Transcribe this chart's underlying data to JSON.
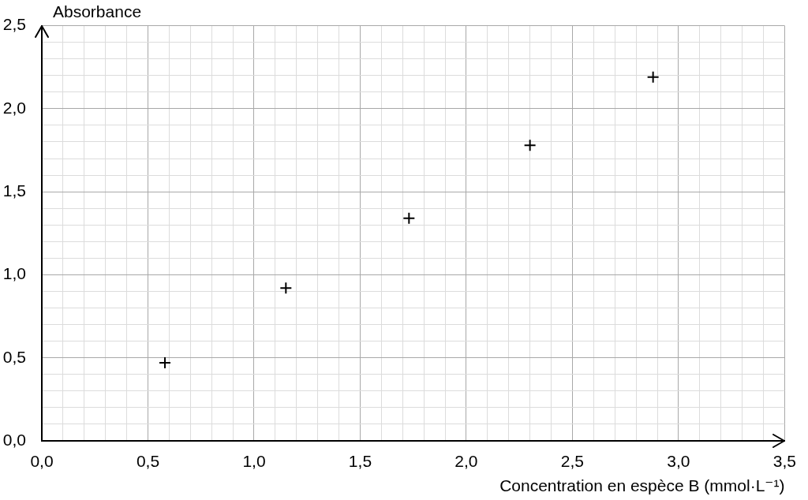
{
  "chart_data": {
    "type": "scatter",
    "ylabel": "Absorbance",
    "xlabel": "Concentration en espèce B (mmol·L⁻¹)",
    "x": [
      0.58,
      1.15,
      1.73,
      2.3,
      2.88
    ],
    "values": [
      0.47,
      0.92,
      1.34,
      1.78,
      2.19
    ],
    "color": "#000000",
    "marker": "cross",
    "xlim": [
      0,
      3.5
    ],
    "ylim": [
      0,
      2.5
    ],
    "xticks": [
      {
        "value": 0,
        "label": "0,0"
      },
      {
        "value": 0.1,
        "label": null
      },
      {
        "value": 0.2,
        "label": null
      },
      {
        "value": 0.3,
        "label": null
      },
      {
        "value": 0.4,
        "label": null
      },
      {
        "value": 0.5,
        "label": "0,5"
      },
      {
        "value": 0.6,
        "label": null
      },
      {
        "value": 0.7,
        "label": null
      },
      {
        "value": 0.8,
        "label": null
      },
      {
        "value": 0.9,
        "label": null
      },
      {
        "value": 1.0,
        "label": "1,0"
      },
      {
        "value": 1.1,
        "label": null
      },
      {
        "value": 1.2,
        "label": null
      },
      {
        "value": 1.3,
        "label": null
      },
      {
        "value": 1.4,
        "label": null
      },
      {
        "value": 1.5,
        "label": "1,5"
      },
      {
        "value": 1.6,
        "label": null
      },
      {
        "value": 1.7,
        "label": null
      },
      {
        "value": 1.8,
        "label": null
      },
      {
        "value": 1.9,
        "label": null
      },
      {
        "value": 2.0,
        "label": "2,0"
      },
      {
        "value": 2.1,
        "label": null
      },
      {
        "value": 2.2,
        "label": null
      },
      {
        "value": 2.3,
        "label": null
      },
      {
        "value": 2.4,
        "label": null
      },
      {
        "value": 2.5,
        "label": "2,5"
      },
      {
        "value": 2.6,
        "label": null
      },
      {
        "value": 2.7,
        "label": null
      },
      {
        "value": 2.8,
        "label": null
      },
      {
        "value": 2.9,
        "label": null
      },
      {
        "value": 3.0,
        "label": "3,0"
      },
      {
        "value": 3.1,
        "label": null
      },
      {
        "value": 3.2,
        "label": null
      },
      {
        "value": 3.3,
        "label": null
      },
      {
        "value": 3.4,
        "label": null
      },
      {
        "value": 3.5,
        "label": "3,5"
      }
    ],
    "yticks": [
      {
        "value": 0,
        "label": "0,0"
      },
      {
        "value": 0.1,
        "label": null
      },
      {
        "value": 0.2,
        "label": null
      },
      {
        "value": 0.3,
        "label": null
      },
      {
        "value": 0.4,
        "label": null
      },
      {
        "value": 0.5,
        "label": "0,5"
      },
      {
        "value": 0.6,
        "label": null
      },
      {
        "value": 0.7,
        "label": null
      },
      {
        "value": 0.8,
        "label": null
      },
      {
        "value": 0.9,
        "label": null
      },
      {
        "value": 1.0,
        "label": "1,0"
      },
      {
        "value": 1.1,
        "label": null
      },
      {
        "value": 1.2,
        "label": null
      },
      {
        "value": 1.3,
        "label": null
      },
      {
        "value": 1.4,
        "label": null
      },
      {
        "value": 1.5,
        "label": "1,5"
      },
      {
        "value": 1.6,
        "label": null
      },
      {
        "value": 1.7,
        "label": null
      },
      {
        "value": 1.8,
        "label": null
      },
      {
        "value": 1.9,
        "label": null
      },
      {
        "value": 2.0,
        "label": "2,0"
      },
      {
        "value": 2.1,
        "label": null
      },
      {
        "value": 2.2,
        "label": null
      },
      {
        "value": 2.3,
        "label": null
      },
      {
        "value": 2.4,
        "label": null
      },
      {
        "value": 2.5,
        "label": "2,5"
      }
    ],
    "grid": true
  }
}
